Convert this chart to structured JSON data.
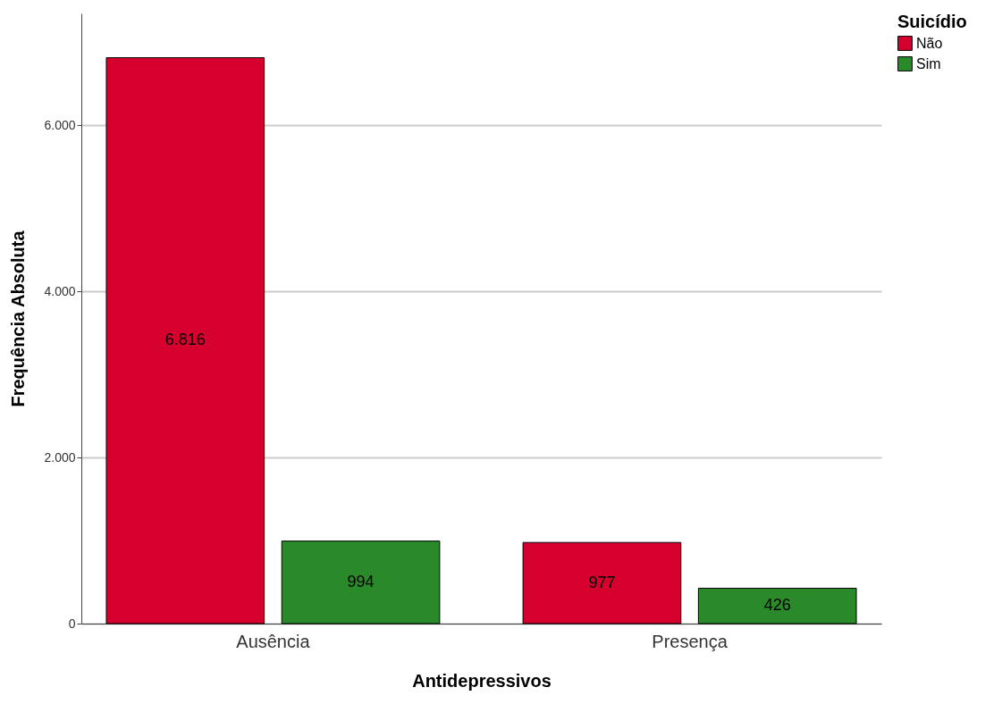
{
  "chart_data": {
    "type": "bar",
    "xlabel": "Antidepressivos",
    "ylabel": "Frequência Absoluta",
    "legend_title": "Suicídio",
    "categories": [
      "Ausência",
      "Presença"
    ],
    "series": [
      {
        "name": "Não",
        "color": "#d6002f",
        "values": [
          6816,
          977
        ],
        "value_labels": [
          "6.816",
          "977"
        ]
      },
      {
        "name": "Sim",
        "color": "#2a8a2a",
        "values": [
          994,
          426
        ],
        "value_labels": [
          "994",
          "426"
        ]
      }
    ],
    "ylim": [
      0,
      7350
    ],
    "yticks": [
      0,
      {
        "value": 2000,
        "label": "2.000"
      },
      {
        "value": 4000,
        "label": "4.000"
      },
      {
        "value": 6000,
        "label": "6.000"
      }
    ],
    "grid": "y",
    "legend": "top right"
  }
}
